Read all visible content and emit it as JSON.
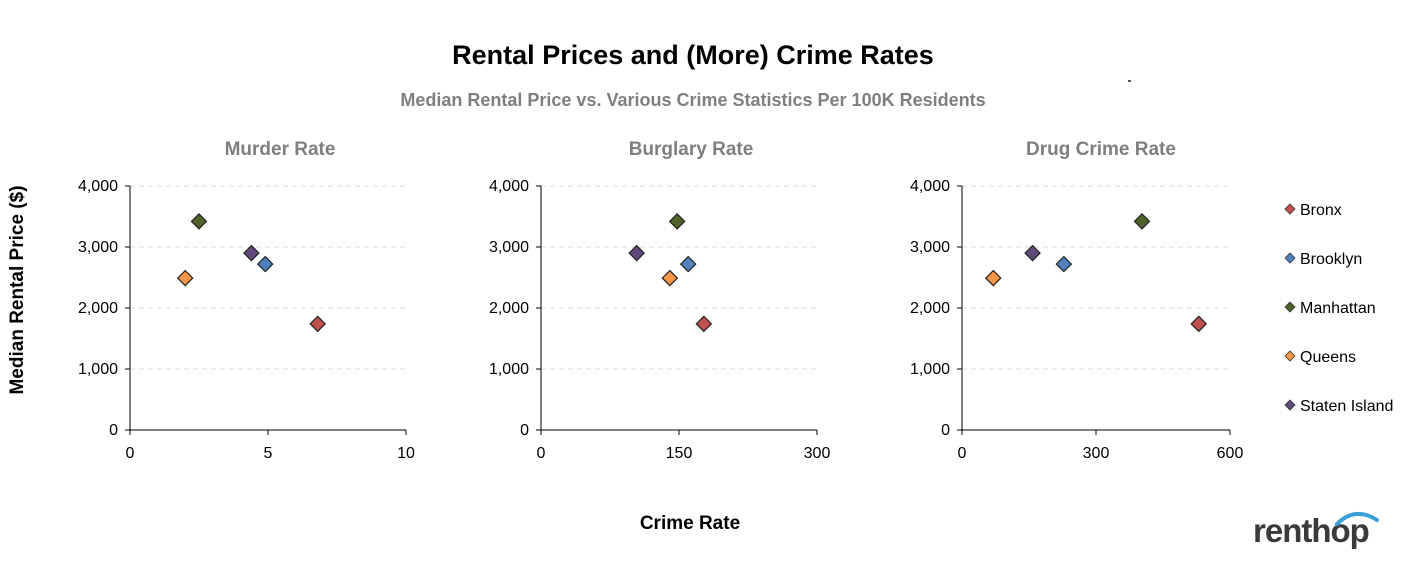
{
  "title": "Rental Prices and (More) Crime Rates",
  "subtitle": "Median Rental Price vs. Various Crime Statistics Per 100K Residents",
  "ylabel": "Median Rental Price ($)",
  "xlabel": "Crime Rate",
  "logo": "renthop",
  "colors": {
    "Bronx": "#c0504d",
    "Brooklyn": "#4f81bd",
    "Manhattan": "#4f6228",
    "Queens": "#f79646",
    "Staten Island": "#604a7b"
  },
  "legend": [
    "Bronx",
    "Brooklyn",
    "Manhattan",
    "Queens",
    "Staten Island"
  ],
  "chart_data": [
    {
      "type": "scatter",
      "title": "Murder Rate",
      "xlim": [
        0,
        10
      ],
      "xticks": [
        "0",
        "5",
        "10"
      ],
      "ylim": [
        0,
        4000
      ],
      "yticks": [
        "0",
        "1,000",
        "2,000",
        "3,000",
        "4,000"
      ],
      "grid": true,
      "series": [
        {
          "name": "Bronx",
          "x": 6.8,
          "y": 1740
        },
        {
          "name": "Brooklyn",
          "x": 4.9,
          "y": 2720
        },
        {
          "name": "Manhattan",
          "x": 2.5,
          "y": 3420
        },
        {
          "name": "Queens",
          "x": 2.0,
          "y": 2490
        },
        {
          "name": "Staten Island",
          "x": 4.4,
          "y": 2900
        }
      ]
    },
    {
      "type": "scatter",
      "title": "Burglary Rate",
      "xlim": [
        0,
        300
      ],
      "xticks": [
        "0",
        "150",
        "300"
      ],
      "ylim": [
        0,
        4000
      ],
      "yticks": [
        "0",
        "1,000",
        "2,000",
        "3,000",
        "4,000"
      ],
      "grid": true,
      "series": [
        {
          "name": "Bronx",
          "x": 177,
          "y": 1740
        },
        {
          "name": "Brooklyn",
          "x": 160,
          "y": 2720
        },
        {
          "name": "Manhattan",
          "x": 148,
          "y": 3420
        },
        {
          "name": "Queens",
          "x": 140,
          "y": 2490
        },
        {
          "name": "Staten Island",
          "x": 104,
          "y": 2900
        }
      ]
    },
    {
      "type": "scatter",
      "title": "Drug Crime Rate",
      "xlim": [
        0,
        600
      ],
      "xticks": [
        "0",
        "300",
        "600"
      ],
      "ylim": [
        0,
        4000
      ],
      "yticks": [
        "0",
        "1,000",
        "2,000",
        "3,000",
        "4,000"
      ],
      "grid": true,
      "series": [
        {
          "name": "Bronx",
          "x": 530,
          "y": 1740
        },
        {
          "name": "Brooklyn",
          "x": 228,
          "y": 2720
        },
        {
          "name": "Manhattan",
          "x": 403,
          "y": 3420
        },
        {
          "name": "Queens",
          "x": 70,
          "y": 2490
        },
        {
          "name": "Staten Island",
          "x": 158,
          "y": 2900
        }
      ]
    }
  ]
}
